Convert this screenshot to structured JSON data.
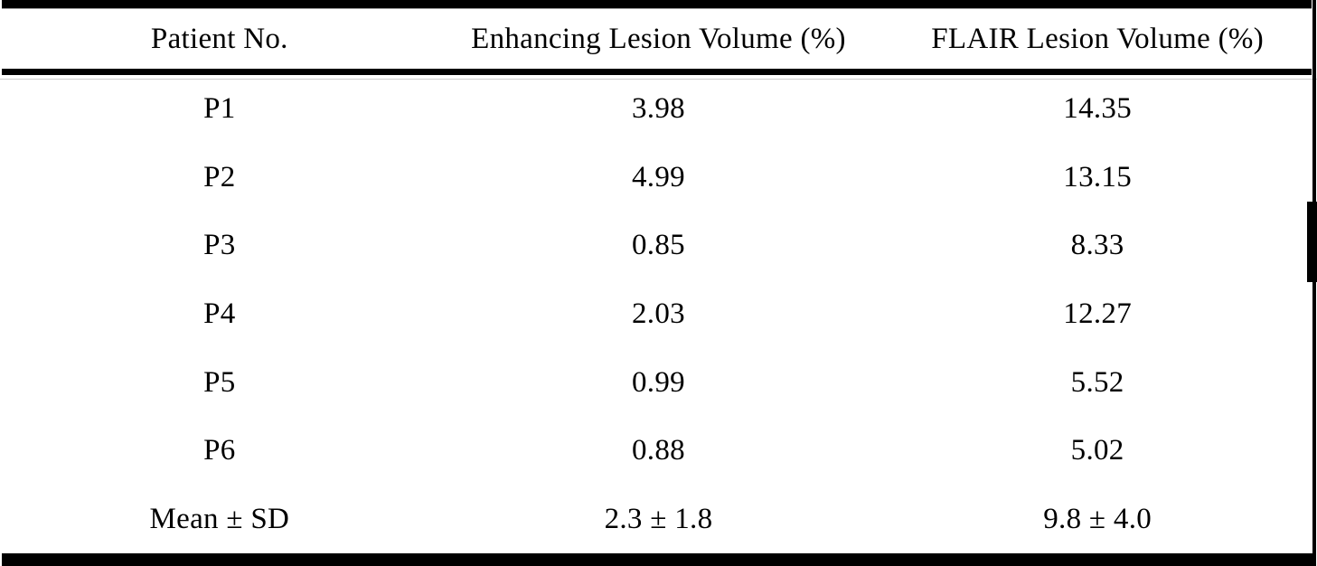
{
  "table": {
    "columns": [
      "Patient No.",
      "Enhancing Lesion Volume (%)",
      "FLAIR Lesion Volume (%)"
    ],
    "rows": [
      {
        "patient": "P1",
        "enhancing": "3.98",
        "flair": "14.35"
      },
      {
        "patient": "P2",
        "enhancing": "4.99",
        "flair": "13.15"
      },
      {
        "patient": "P3",
        "enhancing": "0.85",
        "flair": "8.33"
      },
      {
        "patient": "P4",
        "enhancing": "2.03",
        "flair": "12.27"
      },
      {
        "patient": "P5",
        "enhancing": "0.99",
        "flair": "5.52"
      },
      {
        "patient": "P6",
        "enhancing": "0.88",
        "flair": "5.02"
      },
      {
        "patient": "Mean ± SD",
        "enhancing": "2.3 ± 1.8",
        "flair": "9.8 ± 4.0"
      }
    ]
  },
  "chart_data": {
    "type": "table",
    "title": "",
    "columns": [
      "Patient No.",
      "Enhancing Lesion Volume (%)",
      "FLAIR Lesion Volume (%)"
    ],
    "rows": [
      [
        "P1",
        3.98,
        14.35
      ],
      [
        "P2",
        4.99,
        13.15
      ],
      [
        "P3",
        0.85,
        8.33
      ],
      [
        "P4",
        2.03,
        12.27
      ],
      [
        "P5",
        0.99,
        5.52
      ],
      [
        "P6",
        0.88,
        5.02
      ],
      [
        "Mean ± SD",
        "2.3 ± 1.8",
        "9.8 ± 4.0"
      ]
    ]
  },
  "colors": {
    "text": "#000000",
    "background": "#ffffff",
    "rule": "#000000"
  }
}
